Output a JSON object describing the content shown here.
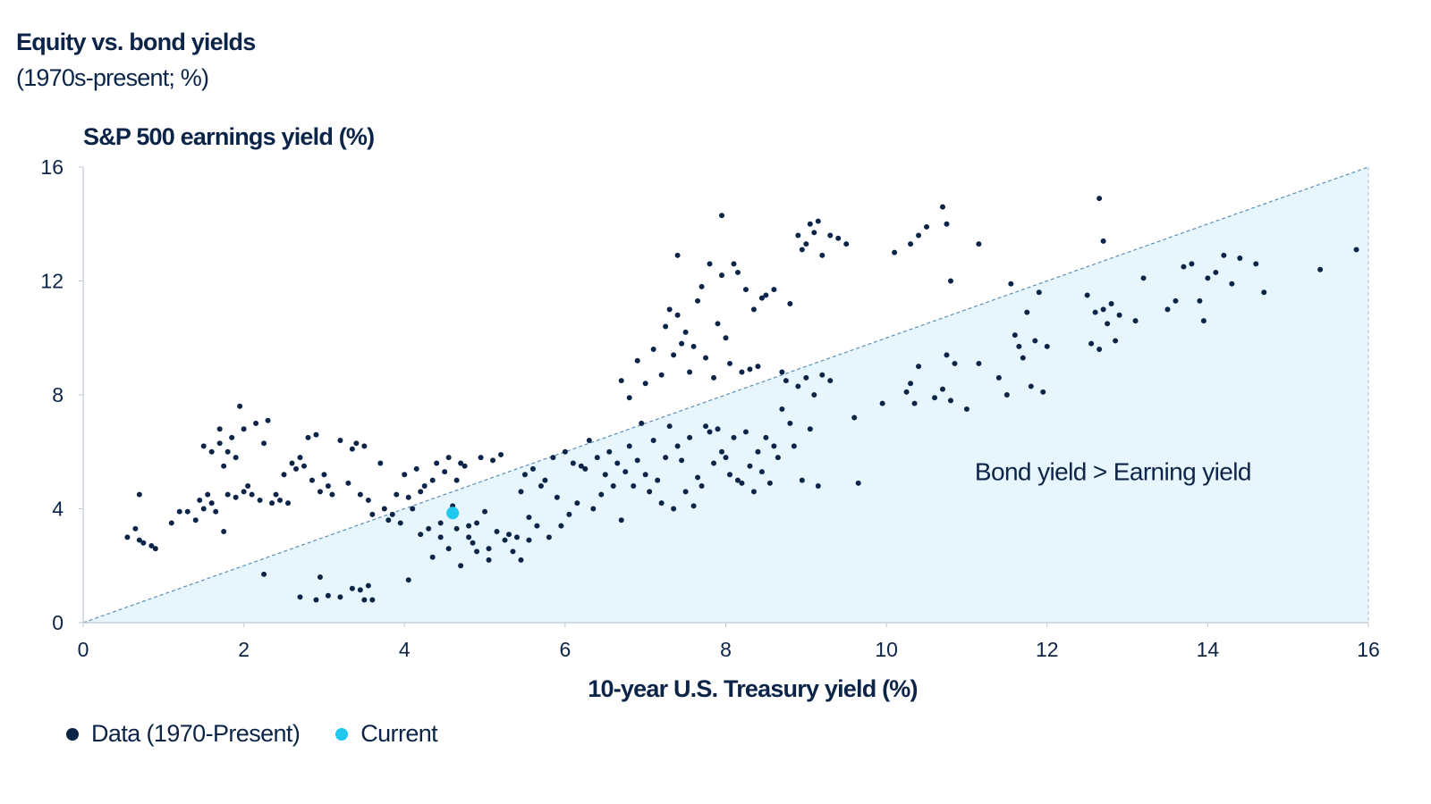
{
  "title": "Equity vs. bond yields",
  "subtitle": "(1970s-present; %)",
  "colors": {
    "data": "#0b2447",
    "current": "#1ec8ee",
    "region_fill": "#e7f5fc",
    "diagonal": "#5a8fb3",
    "axis": "#bfc7d2"
  },
  "legend": [
    {
      "label": "Data (1970-Present)",
      "color": "#0b2447"
    },
    {
      "label": "Current",
      "color": "#1ec8ee"
    }
  ],
  "chart_data": {
    "type": "scatter",
    "title": "Equity vs. bond yields",
    "ylabel": "S&P 500 earnings yield (%)",
    "xlabel": "10-year U.S. Treasury yield (%)",
    "xlim": [
      0,
      16
    ],
    "ylim": [
      0,
      16
    ],
    "x_ticks": [
      "0",
      "2",
      "4",
      "6",
      "8",
      "10",
      "12",
      "14",
      "16"
    ],
    "y_ticks": [
      "0",
      "4",
      "8",
      "12",
      "16"
    ],
    "annotation": "Bond yield > Earning yield",
    "legend_position": "bottom-left",
    "grid": false,
    "series": [
      {
        "name": "Data (1970-Present)",
        "points": [
          [
            0.55,
            3.0
          ],
          [
            0.65,
            3.3
          ],
          [
            0.7,
            2.9
          ],
          [
            0.75,
            2.8
          ],
          [
            0.85,
            2.7
          ],
          [
            0.9,
            2.6
          ],
          [
            0.7,
            4.5
          ],
          [
            1.1,
            3.5
          ],
          [
            1.2,
            3.9
          ],
          [
            1.3,
            3.9
          ],
          [
            1.4,
            3.6
          ],
          [
            1.45,
            4.3
          ],
          [
            1.5,
            4.0
          ],
          [
            1.5,
            6.2
          ],
          [
            1.55,
            4.5
          ],
          [
            1.6,
            4.2
          ],
          [
            1.6,
            6.0
          ],
          [
            1.65,
            3.9
          ],
          [
            1.7,
            6.3
          ],
          [
            1.7,
            6.8
          ],
          [
            1.75,
            5.5
          ],
          [
            1.75,
            3.2
          ],
          [
            1.8,
            4.5
          ],
          [
            1.8,
            6.0
          ],
          [
            1.85,
            6.5
          ],
          [
            1.9,
            4.4
          ],
          [
            1.9,
            5.8
          ],
          [
            1.95,
            7.6
          ],
          [
            2.0,
            4.6
          ],
          [
            2.0,
            6.8
          ],
          [
            2.05,
            4.8
          ],
          [
            2.1,
            4.5
          ],
          [
            2.15,
            7.0
          ],
          [
            2.2,
            4.3
          ],
          [
            2.25,
            6.3
          ],
          [
            2.3,
            7.1
          ],
          [
            2.35,
            4.2
          ],
          [
            2.4,
            4.5
          ],
          [
            2.45,
            4.3
          ],
          [
            2.5,
            5.2
          ],
          [
            2.55,
            4.2
          ],
          [
            2.6,
            5.6
          ],
          [
            2.65,
            5.4
          ],
          [
            2.7,
            5.8
          ],
          [
            2.75,
            5.5
          ],
          [
            2.8,
            6.5
          ],
          [
            2.85,
            5.0
          ],
          [
            2.9,
            6.6
          ],
          [
            2.95,
            4.6
          ],
          [
            3.0,
            5.2
          ],
          [
            3.05,
            4.8
          ],
          [
            3.1,
            4.5
          ],
          [
            3.2,
            6.4
          ],
          [
            3.3,
            4.9
          ],
          [
            3.35,
            6.1
          ],
          [
            3.4,
            6.3
          ],
          [
            3.45,
            4.5
          ],
          [
            3.5,
            6.2
          ],
          [
            3.55,
            4.3
          ],
          [
            3.6,
            3.8
          ],
          [
            3.7,
            5.6
          ],
          [
            3.75,
            4.0
          ],
          [
            3.8,
            3.6
          ],
          [
            3.85,
            3.8
          ],
          [
            3.9,
            4.5
          ],
          [
            3.95,
            3.5
          ],
          [
            4.0,
            5.2
          ],
          [
            4.05,
            4.4
          ],
          [
            4.1,
            4.0
          ],
          [
            4.15,
            5.4
          ],
          [
            4.2,
            4.6
          ],
          [
            4.25,
            4.8
          ],
          [
            4.3,
            3.3
          ],
          [
            4.35,
            5.0
          ],
          [
            4.4,
            5.6
          ],
          [
            4.45,
            3.0
          ],
          [
            4.5,
            5.3
          ],
          [
            4.55,
            5.8
          ],
          [
            4.6,
            4.1
          ],
          [
            4.65,
            5.0
          ],
          [
            4.7,
            5.6
          ],
          [
            4.75,
            5.5
          ],
          [
            4.8,
            3.4
          ],
          [
            4.85,
            2.8
          ],
          [
            4.9,
            2.5
          ],
          [
            4.95,
            5.8
          ],
          [
            5.0,
            3.9
          ],
          [
            5.05,
            2.2
          ],
          [
            5.1,
            5.7
          ],
          [
            5.2,
            5.9
          ],
          [
            5.3,
            3.1
          ],
          [
            5.4,
            3.0
          ],
          [
            5.45,
            4.6
          ],
          [
            5.5,
            5.2
          ],
          [
            5.55,
            3.7
          ],
          [
            5.6,
            5.4
          ],
          [
            5.65,
            3.4
          ],
          [
            5.7,
            4.8
          ],
          [
            5.75,
            5.0
          ],
          [
            5.8,
            3.0
          ],
          [
            5.85,
            5.8
          ],
          [
            5.9,
            4.4
          ],
          [
            5.95,
            3.4
          ],
          [
            6.0,
            6.0
          ],
          [
            6.05,
            3.8
          ],
          [
            6.1,
            5.6
          ],
          [
            6.15,
            4.2
          ],
          [
            6.2,
            5.5
          ],
          [
            6.25,
            5.4
          ],
          [
            6.3,
            6.4
          ],
          [
            6.35,
            4.0
          ],
          [
            6.4,
            5.8
          ],
          [
            6.45,
            4.5
          ],
          [
            6.5,
            5.2
          ],
          [
            6.55,
            6.0
          ],
          [
            6.6,
            4.8
          ],
          [
            6.65,
            5.6
          ],
          [
            6.7,
            3.6
          ],
          [
            6.75,
            5.3
          ],
          [
            6.8,
            6.2
          ],
          [
            6.85,
            4.8
          ],
          [
            6.9,
            5.7
          ],
          [
            6.95,
            7.0
          ],
          [
            7.0,
            5.2
          ],
          [
            7.05,
            4.6
          ],
          [
            7.1,
            6.4
          ],
          [
            7.15,
            5.0
          ],
          [
            7.2,
            4.2
          ],
          [
            7.25,
            5.8
          ],
          [
            7.3,
            6.9
          ],
          [
            7.35,
            4.0
          ],
          [
            7.4,
            6.2
          ],
          [
            7.45,
            5.7
          ],
          [
            7.5,
            4.6
          ],
          [
            7.55,
            6.5
          ],
          [
            7.6,
            4.1
          ],
          [
            7.65,
            5.1
          ],
          [
            7.7,
            4.8
          ],
          [
            7.75,
            6.9
          ],
          [
            7.8,
            6.7
          ],
          [
            7.85,
            5.6
          ],
          [
            7.9,
            6.8
          ],
          [
            7.95,
            6.0
          ],
          [
            8.0,
            5.8
          ],
          [
            8.05,
            5.2
          ],
          [
            8.1,
            6.5
          ],
          [
            8.15,
            5.0
          ],
          [
            8.2,
            4.9
          ],
          [
            8.25,
            6.7
          ],
          [
            8.3,
            5.5
          ],
          [
            8.35,
            4.6
          ],
          [
            8.4,
            6.0
          ],
          [
            8.45,
            5.3
          ],
          [
            8.5,
            6.5
          ],
          [
            8.55,
            4.9
          ],
          [
            8.6,
            6.2
          ],
          [
            8.65,
            5.8
          ],
          [
            8.7,
            7.5
          ],
          [
            8.75,
            8.5
          ],
          [
            8.8,
            7.0
          ],
          [
            8.85,
            6.2
          ],
          [
            8.9,
            8.3
          ],
          [
            8.95,
            5.0
          ],
          [
            9.0,
            8.6
          ],
          [
            9.05,
            6.8
          ],
          [
            9.1,
            8.0
          ],
          [
            9.15,
            4.8
          ],
          [
            9.2,
            8.7
          ],
          [
            9.3,
            8.5
          ],
          [
            9.6,
            7.2
          ],
          [
            9.65,
            4.9
          ],
          [
            6.7,
            8.5
          ],
          [
            6.8,
            7.9
          ],
          [
            6.9,
            9.2
          ],
          [
            7.0,
            8.4
          ],
          [
            7.1,
            9.6
          ],
          [
            7.2,
            8.7
          ],
          [
            7.25,
            10.4
          ],
          [
            7.3,
            11.0
          ],
          [
            7.35,
            9.4
          ],
          [
            7.4,
            10.8
          ],
          [
            7.45,
            9.8
          ],
          [
            7.5,
            10.2
          ],
          [
            7.55,
            8.8
          ],
          [
            7.6,
            9.7
          ],
          [
            7.65,
            11.3
          ],
          [
            7.7,
            11.8
          ],
          [
            7.75,
            9.3
          ],
          [
            7.8,
            12.6
          ],
          [
            7.85,
            8.6
          ],
          [
            7.9,
            10.5
          ],
          [
            7.95,
            12.2
          ],
          [
            8.0,
            10.0
          ],
          [
            8.05,
            9.1
          ],
          [
            8.1,
            12.6
          ],
          [
            8.15,
            12.3
          ],
          [
            8.2,
            8.8
          ],
          [
            8.25,
            11.7
          ],
          [
            8.3,
            8.9
          ],
          [
            8.35,
            11.0
          ],
          [
            8.4,
            9.0
          ],
          [
            8.45,
            11.4
          ],
          [
            8.5,
            11.5
          ],
          [
            8.6,
            11.7
          ],
          [
            8.7,
            8.8
          ],
          [
            8.8,
            11.2
          ],
          [
            7.4,
            12.9
          ],
          [
            7.95,
            14.3
          ],
          [
            8.9,
            13.6
          ],
          [
            8.95,
            13.1
          ],
          [
            9.0,
            13.3
          ],
          [
            9.05,
            14.0
          ],
          [
            9.1,
            13.7
          ],
          [
            9.15,
            14.1
          ],
          [
            9.2,
            12.9
          ],
          [
            9.3,
            13.6
          ],
          [
            9.4,
            13.5
          ],
          [
            9.5,
            13.3
          ],
          [
            10.1,
            13.0
          ],
          [
            10.3,
            13.3
          ],
          [
            10.4,
            13.6
          ],
          [
            10.5,
            13.9
          ],
          [
            10.7,
            14.6
          ],
          [
            10.75,
            14.0
          ],
          [
            10.8,
            12.0
          ],
          [
            11.15,
            13.3
          ],
          [
            12.65,
            14.9
          ],
          [
            12.7,
            13.4
          ],
          [
            9.95,
            7.7
          ],
          [
            10.25,
            8.1
          ],
          [
            10.3,
            8.4
          ],
          [
            10.35,
            7.7
          ],
          [
            10.4,
            9.0
          ],
          [
            10.6,
            7.9
          ],
          [
            10.7,
            8.2
          ],
          [
            10.75,
            9.4
          ],
          [
            10.8,
            7.8
          ],
          [
            10.85,
            9.1
          ],
          [
            11.0,
            7.5
          ],
          [
            11.15,
            9.1
          ],
          [
            11.4,
            8.6
          ],
          [
            11.5,
            8.0
          ],
          [
            11.55,
            11.9
          ],
          [
            11.6,
            10.1
          ],
          [
            11.65,
            9.7
          ],
          [
            11.7,
            9.3
          ],
          [
            11.75,
            10.9
          ],
          [
            11.8,
            8.3
          ],
          [
            11.85,
            9.9
          ],
          [
            11.9,
            11.6
          ],
          [
            11.95,
            8.1
          ],
          [
            12.0,
            9.7
          ],
          [
            12.5,
            11.5
          ],
          [
            12.55,
            9.8
          ],
          [
            12.6,
            10.9
          ],
          [
            12.65,
            9.6
          ],
          [
            12.7,
            11.0
          ],
          [
            12.75,
            10.5
          ],
          [
            12.8,
            11.2
          ],
          [
            12.85,
            9.9
          ],
          [
            12.9,
            10.8
          ],
          [
            13.1,
            10.6
          ],
          [
            13.2,
            12.1
          ],
          [
            13.5,
            11.0
          ],
          [
            13.6,
            11.3
          ],
          [
            13.7,
            12.5
          ],
          [
            13.8,
            12.6
          ],
          [
            13.9,
            11.3
          ],
          [
            13.95,
            10.6
          ],
          [
            14.0,
            12.1
          ],
          [
            14.1,
            12.3
          ],
          [
            14.2,
            12.9
          ],
          [
            14.3,
            11.9
          ],
          [
            14.4,
            12.8
          ],
          [
            14.6,
            12.6
          ],
          [
            14.7,
            11.6
          ],
          [
            15.4,
            12.4
          ],
          [
            15.85,
            13.1
          ],
          [
            2.25,
            1.7
          ],
          [
            2.7,
            0.9
          ],
          [
            2.9,
            0.8
          ],
          [
            2.95,
            1.6
          ],
          [
            3.05,
            0.95
          ],
          [
            3.2,
            0.9
          ],
          [
            3.35,
            1.2
          ],
          [
            3.45,
            1.15
          ],
          [
            3.5,
            0.8
          ],
          [
            3.55,
            1.3
          ],
          [
            3.6,
            0.8
          ],
          [
            4.05,
            1.5
          ],
          [
            4.35,
            2.3
          ],
          [
            4.2,
            3.1
          ],
          [
            4.45,
            3.5
          ],
          [
            4.55,
            2.6
          ],
          [
            4.65,
            3.3
          ],
          [
            4.7,
            2.0
          ],
          [
            4.8,
            3.0
          ],
          [
            4.9,
            3.5
          ],
          [
            5.05,
            2.6
          ],
          [
            5.15,
            3.2
          ],
          [
            5.25,
            2.9
          ],
          [
            5.35,
            2.5
          ],
          [
            5.45,
            2.2
          ],
          [
            5.55,
            2.9
          ]
        ]
      },
      {
        "name": "Current",
        "points": [
          [
            4.6,
            3.85
          ]
        ]
      }
    ]
  }
}
